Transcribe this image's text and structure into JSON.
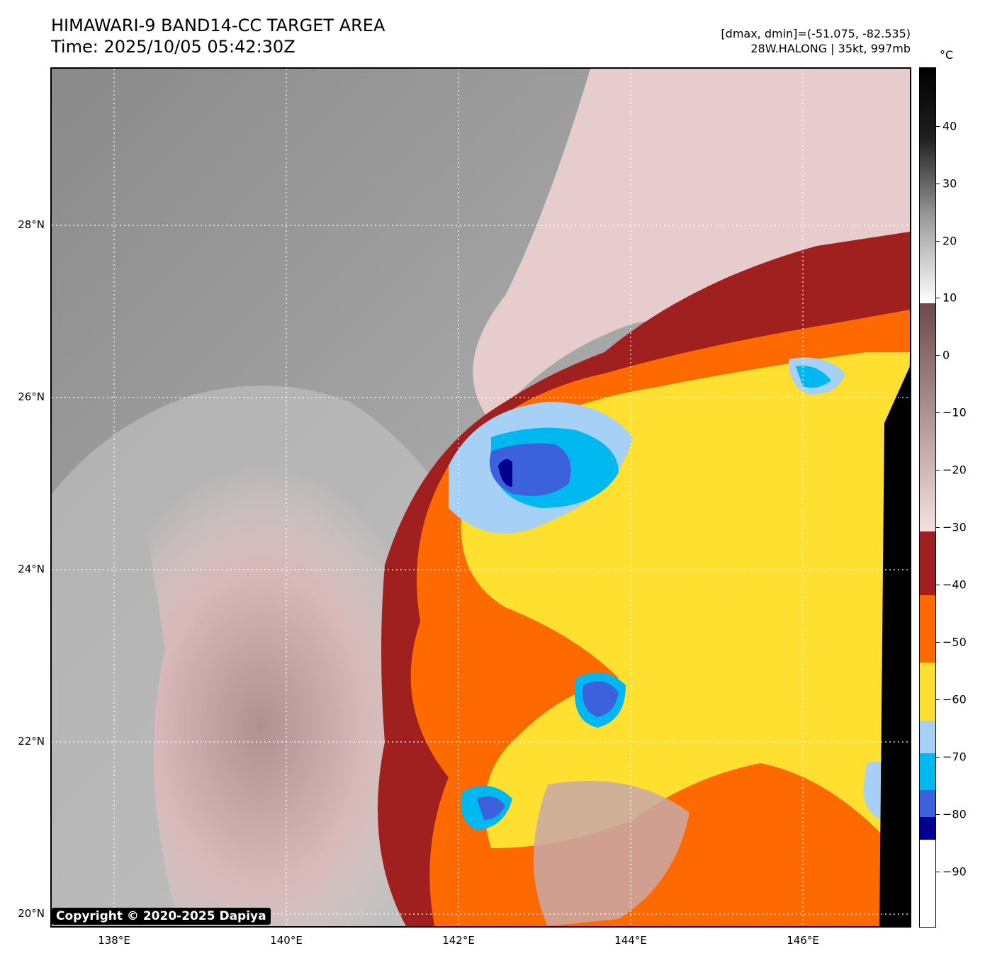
{
  "header": {
    "title_line1": "HIMAWARI-9 BAND14-CC TARGET AREA",
    "title_line2": "Time: 2025/10/05 05:42:30Z",
    "dmax_dmin": "[dmax, dmin]=(-51.075, -82.535)",
    "storm": "28W.HALONG | 35kt, 997mb"
  },
  "map": {
    "lat_labels": [
      "28°N",
      "26°N",
      "24°N",
      "22°N",
      "20°N"
    ],
    "lon_labels": [
      "138°E",
      "140°E",
      "142°E",
      "144°E",
      "146°E"
    ],
    "copyright": "Copyright © 2020-2025 Dapiya"
  },
  "colorbar": {
    "unit": "°C",
    "ticks": [
      "40",
      "30",
      "20",
      "10",
      "0",
      "−10",
      "−20",
      "−30",
      "−40",
      "−50",
      "−60",
      "−70",
      "−80",
      "−90"
    ],
    "colors": {
      "warm_dark": "#000000",
      "warm_gray": "#808080",
      "warm_light": "#f0f0f0",
      "brown": "#7a5555",
      "pink": "#f2d6d6",
      "dark_red": "#a02020",
      "orange": "#ff6a00",
      "yellow": "#ffdf30",
      "light_blue": "#a6d0f5",
      "cyan": "#00b8f0",
      "blue": "#3b62dc",
      "navy": "#000090",
      "white": "#ffffff"
    }
  }
}
